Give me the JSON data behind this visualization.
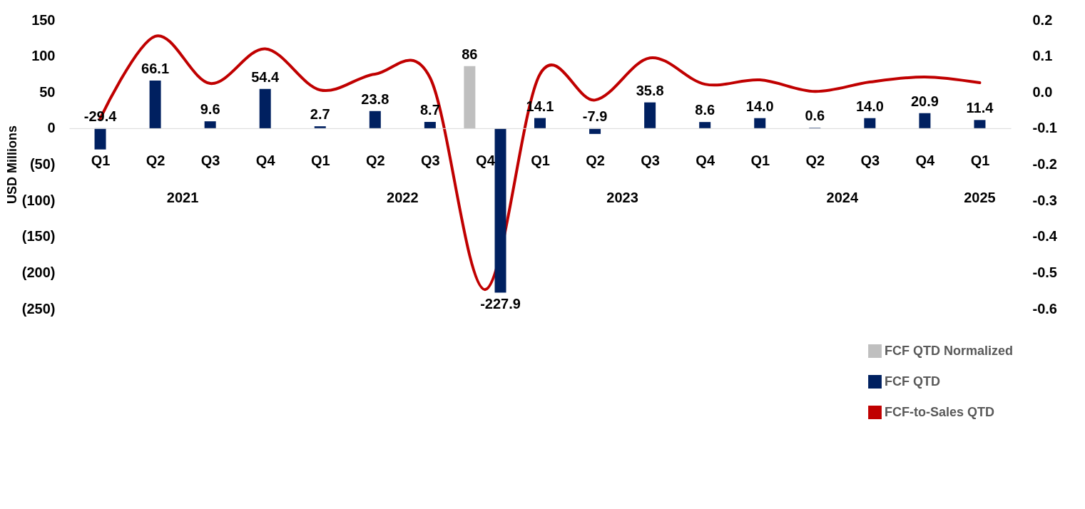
{
  "chart_data": {
    "type": "bar",
    "ylabel": "USD Millions",
    "categories": [
      "Q1",
      "Q2",
      "Q3",
      "Q4",
      "Q1",
      "Q2",
      "Q3",
      "Q4",
      "Q1",
      "Q2",
      "Q3",
      "Q4",
      "Q1",
      "Q2",
      "Q3",
      "Q4",
      "Q1"
    ],
    "annotations": [
      "2021",
      "2022",
      "2023",
      "2024",
      "2025"
    ],
    "series": [
      {
        "name": "FCF QTD Normalized",
        "type": "bar",
        "color": "#bfbfbf",
        "values": [
          null,
          null,
          null,
          null,
          null,
          null,
          null,
          86,
          null,
          null,
          null,
          null,
          null,
          null,
          null,
          null,
          null
        ],
        "value_labels": [
          null,
          null,
          null,
          null,
          null,
          null,
          null,
          "86",
          null,
          null,
          null,
          null,
          null,
          null,
          null,
          null,
          null
        ]
      },
      {
        "name": "FCF QTD",
        "type": "bar",
        "color": "#002060",
        "values": [
          -29.4,
          66.1,
          9.6,
          54.4,
          2.7,
          23.8,
          8.7,
          -227.9,
          14.1,
          -7.9,
          35.8,
          8.6,
          14.0,
          0.6,
          14.0,
          20.9,
          11.4
        ],
        "value_labels": [
          "-29.4",
          "66.1",
          "9.6",
          "54.4",
          "2.7",
          "23.8",
          "8.7",
          "-227.9",
          "14.1",
          "-7.9",
          "35.8",
          "8.6",
          "14.0",
          "0.6",
          "14.0",
          "20.9",
          "11.4"
        ]
      },
      {
        "name": "FCF-to-Sales QTD",
        "type": "line",
        "axis": "y2",
        "color": "#c00000",
        "values": [
          -0.073,
          0.155,
          0.024,
          0.12,
          0.006,
          0.05,
          0.04,
          -0.547,
          0.05,
          -0.022,
          0.095,
          0.022,
          0.034,
          0.002,
          0.028,
          0.042,
          0.026
        ]
      }
    ],
    "ylim": [
      -250,
      150
    ],
    "yticks": [
      150,
      100,
      50,
      {
        "value": 0,
        "label": "0"
      },
      {
        "value": -50,
        "label": "(50)"
      },
      {
        "value": -100,
        "label": "(100)"
      },
      {
        "value": -150,
        "label": "(150)"
      },
      {
        "value": -200,
        "label": "(200)"
      },
      {
        "value": -250,
        "label": "(250)"
      }
    ],
    "y2lim": [
      -0.6,
      0.2
    ],
    "y2ticks": [
      0.2,
      0.1,
      {
        "value": 0,
        "label": "0.0"
      },
      -0.1,
      -0.2,
      -0.3,
      -0.4,
      -0.5,
      -0.6
    ],
    "grid": false,
    "legend": "bottom right"
  }
}
